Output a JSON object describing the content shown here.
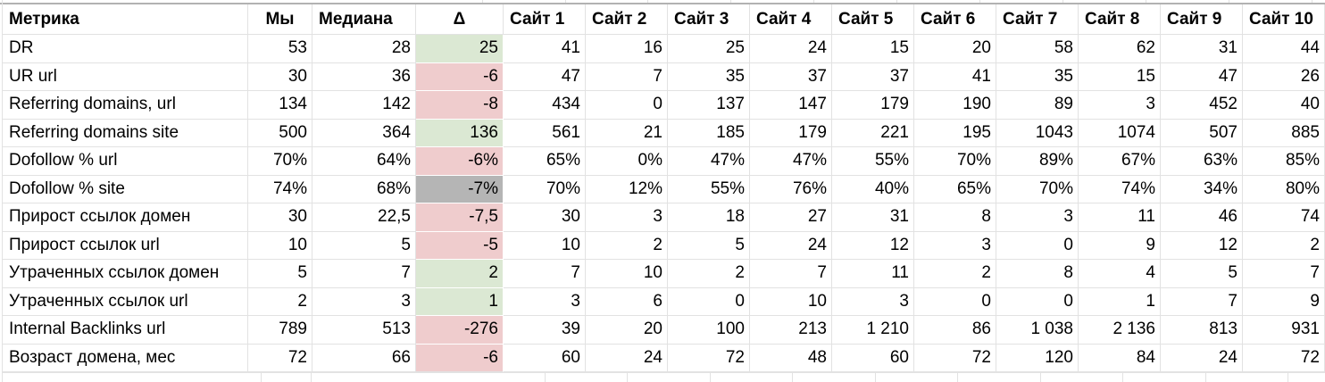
{
  "table": {
    "columns": [
      {
        "label": "Метрика",
        "align": "left"
      },
      {
        "label": "Мы",
        "align": "center"
      },
      {
        "label": "Медиана",
        "align": "left"
      },
      {
        "label": "Δ",
        "align": "center"
      },
      {
        "label": "Сайт 1",
        "align": "left"
      },
      {
        "label": "Сайт 2",
        "align": "left"
      },
      {
        "label": "Сайт 3",
        "align": "left"
      },
      {
        "label": "Сайт 4",
        "align": "left"
      },
      {
        "label": "Сайт 5",
        "align": "left"
      },
      {
        "label": "Сайт 6",
        "align": "left"
      },
      {
        "label": "Сайт 7",
        "align": "left"
      },
      {
        "label": "Сайт 8",
        "align": "left"
      },
      {
        "label": "Сайт 9",
        "align": "left"
      },
      {
        "label": "Сайт 10",
        "align": "left"
      }
    ],
    "rows": [
      {
        "metric": "DR",
        "us": "53",
        "median": "28",
        "delta": "25",
        "delta_status": "positive",
        "sites": [
          "41",
          "16",
          "25",
          "24",
          "15",
          "20",
          "58",
          "62",
          "31",
          "44"
        ]
      },
      {
        "metric": "UR url",
        "us": "30",
        "median": "36",
        "delta": "-6",
        "delta_status": "negative",
        "sites": [
          "47",
          "7",
          "35",
          "37",
          "37",
          "41",
          "35",
          "15",
          "47",
          "26"
        ]
      },
      {
        "metric": "Referring domains, url",
        "us": "134",
        "median": "142",
        "delta": "-8",
        "delta_status": "negative",
        "sites": [
          "434",
          "0",
          "137",
          "147",
          "179",
          "190",
          "89",
          "3",
          "452",
          "40"
        ]
      },
      {
        "metric": "Referring domains site",
        "us": "500",
        "median": "364",
        "delta": "136",
        "delta_status": "positive",
        "sites": [
          "561",
          "21",
          "185",
          "179",
          "221",
          "195",
          "1043",
          "1074",
          "507",
          "885"
        ]
      },
      {
        "metric": "Dofollow % url",
        "us": "70%",
        "median": "64%",
        "delta": "-6%",
        "delta_status": "negative",
        "sites": [
          "65%",
          "0%",
          "47%",
          "47%",
          "55%",
          "70%",
          "89%",
          "67%",
          "63%",
          "85%"
        ]
      },
      {
        "metric": "Dofollow % site",
        "us": "74%",
        "median": "68%",
        "delta": "-7%",
        "delta_status": "neutral",
        "sites": [
          "70%",
          "12%",
          "55%",
          "76%",
          "40%",
          "65%",
          "70%",
          "74%",
          "34%",
          "80%"
        ]
      },
      {
        "metric": "Прирост ссылок домен",
        "us": "30",
        "median": "22,5",
        "delta": "-7,5",
        "delta_status": "negative",
        "sites": [
          "30",
          "3",
          "18",
          "27",
          "31",
          "8",
          "3",
          "11",
          "46",
          "74"
        ]
      },
      {
        "metric": "Прирост ссылок url",
        "us": "10",
        "median": "5",
        "delta": "-5",
        "delta_status": "negative",
        "sites": [
          "10",
          "2",
          "5",
          "24",
          "12",
          "3",
          "0",
          "9",
          "12",
          "2"
        ]
      },
      {
        "metric": "Утраченных ссылок домен",
        "us": "5",
        "median": "7",
        "delta": "2",
        "delta_status": "positive",
        "sites": [
          "7",
          "10",
          "2",
          "7",
          "11",
          "2",
          "8",
          "4",
          "5",
          "7"
        ]
      },
      {
        "metric": "Утраченных ссылок url",
        "us": "2",
        "median": "3",
        "delta": "1",
        "delta_status": "positive",
        "sites": [
          "3",
          "6",
          "0",
          "10",
          "3",
          "0",
          "0",
          "1",
          "7",
          "9"
        ]
      },
      {
        "metric": "Internal Backlinks url",
        "us": "789",
        "median": "513",
        "delta": "-276",
        "delta_status": "negative",
        "sites": [
          "39",
          "20",
          "100",
          "213",
          "1 210",
          "86",
          "1 038",
          "2 136",
          "813",
          "931"
        ]
      },
      {
        "metric": "Возраст домена, мес",
        "us": "72",
        "median": "66",
        "delta": "-6",
        "delta_status": "negative",
        "sites": [
          "60",
          "24",
          "72",
          "48",
          "60",
          "72",
          "120",
          "84",
          "24",
          "72"
        ]
      }
    ]
  },
  "colors": {
    "delta_positive_bg": "#dbe8d3",
    "delta_negative_bg": "#efcccd",
    "delta_neutral_bg": "#b5b5b5",
    "gridline": "#e2e2e2",
    "frozen_divider": "#b2b2b2"
  }
}
